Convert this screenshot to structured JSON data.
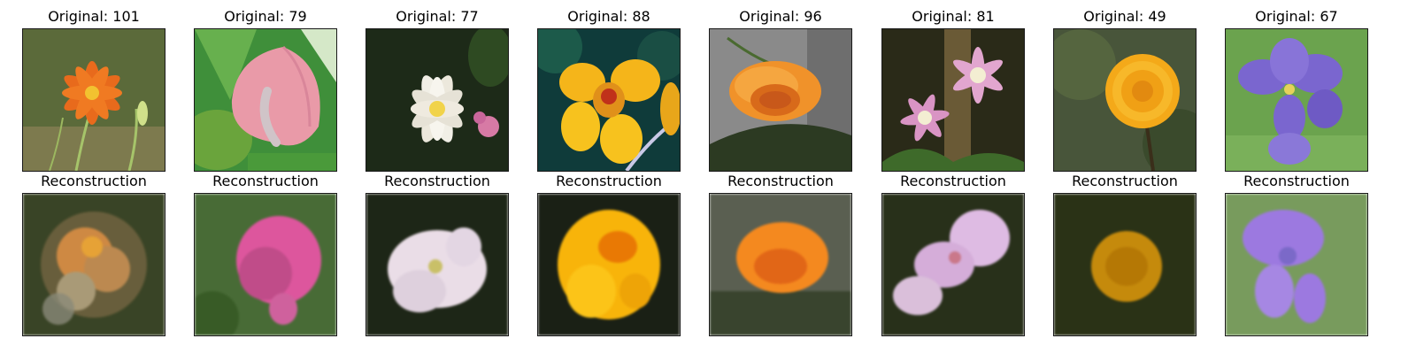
{
  "figure": {
    "originals": [
      {
        "title": "Original: 101",
        "subject": "orange-lily",
        "bg": "#5b6a3a",
        "petal": "#e86a1c",
        "center": "#f2c230"
      },
      {
        "title": "Original: 79",
        "subject": "pink-anthurium",
        "bg": "#3f8f3a",
        "petal": "#e99aa8",
        "center": "#d9869a"
      },
      {
        "title": "Original: 77",
        "subject": "white-lotus",
        "bg": "#1d2a18",
        "petal": "#f1efe6",
        "center": "#f1d34a"
      },
      {
        "title": "Original: 88",
        "subject": "yellow-nasturtium",
        "bg": "#0f3b3a",
        "petal": "#f5b51a",
        "center": "#c0311a"
      },
      {
        "title": "Original: 96",
        "subject": "orange-globe",
        "bg": "#8a8a8a",
        "petal": "#f0922a",
        "center": "#d86a1a"
      },
      {
        "title": "Original: 81",
        "subject": "pink-clematis",
        "bg": "#2a2a18",
        "petal": "#e2a6cf",
        "center": "#f3eed2"
      },
      {
        "title": "Original: 49",
        "subject": "yellow-dandelion",
        "bg": "#48553a",
        "petal": "#f4a919",
        "center": "#e28a10"
      },
      {
        "title": "Original: 67",
        "subject": "purple-iris",
        "bg": "#6ba34e",
        "petal": "#7a66cf",
        "center": "#e6d25a"
      }
    ],
    "reconstructions": [
      {
        "title": "Reconstruction",
        "bg": "#3a4428",
        "petal": "#c98a4a",
        "center": "#e0a340"
      },
      {
        "title": "Reconstruction",
        "bg": "#4a6a3a",
        "petal": "#d4599a",
        "center": "#b84f86"
      },
      {
        "title": "Reconstruction",
        "bg": "#1e2618",
        "petal": "#e9dde6",
        "center": "#c8c070"
      },
      {
        "title": "Reconstruction",
        "bg": "#1a2016",
        "petal": "#f2b41a",
        "center": "#e07a10"
      },
      {
        "title": "Reconstruction",
        "bg": "#5a5f52",
        "petal": "#ec8a2a",
        "center": "#d86820"
      },
      {
        "title": "Reconstruction",
        "bg": "#28301c",
        "petal": "#dcbce0",
        "center": "#c47a8a"
      },
      {
        "title": "Reconstruction",
        "bg": "#2a3218",
        "petal": "#c08a18",
        "center": "#b07810"
      },
      {
        "title": "Reconstruction",
        "bg": "#7a9a62",
        "petal": "#9a7ad8",
        "center": "#7a6ac0"
      }
    ]
  }
}
